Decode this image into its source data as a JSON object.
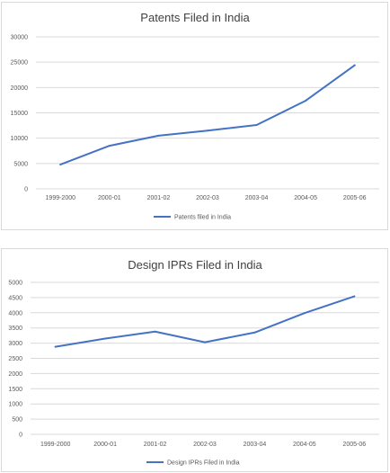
{
  "colors": {
    "series": "#4472c4"
  },
  "chart_data": [
    {
      "type": "line",
      "title": "Patents Filed in India",
      "categories": [
        "1999-2000",
        "2000-01",
        "2001-02",
        "2002-03",
        "2003-04",
        "2004-05",
        "2005-06"
      ],
      "series": [
        {
          "name": "Patents filed in India",
          "values": [
            4800,
            8500,
            10500,
            11500,
            12600,
            17400,
            24400
          ]
        }
      ],
      "ylim": [
        0,
        30000
      ],
      "yticks": [
        "0",
        "5000",
        "10000",
        "15000",
        "20000",
        "25000",
        "30000"
      ],
      "grid": true,
      "legend": "bottom"
    },
    {
      "type": "line",
      "title": "Design IPRs Filed in India",
      "categories": [
        "1999-2000",
        "2000-01",
        "2001-02",
        "2002-03",
        "2003-04",
        "2004-05",
        "2005-06"
      ],
      "series": [
        {
          "name": "Design IPRs Filed in India",
          "values": [
            2880,
            3150,
            3380,
            3030,
            3350,
            3990,
            4540
          ]
        }
      ],
      "ylim": [
        0,
        5000
      ],
      "yticks": [
        "0",
        "500",
        "1000",
        "1500",
        "2000",
        "2500",
        "3000",
        "3500",
        "4000",
        "4500",
        "5000"
      ],
      "grid": true,
      "legend": "bottom"
    }
  ]
}
